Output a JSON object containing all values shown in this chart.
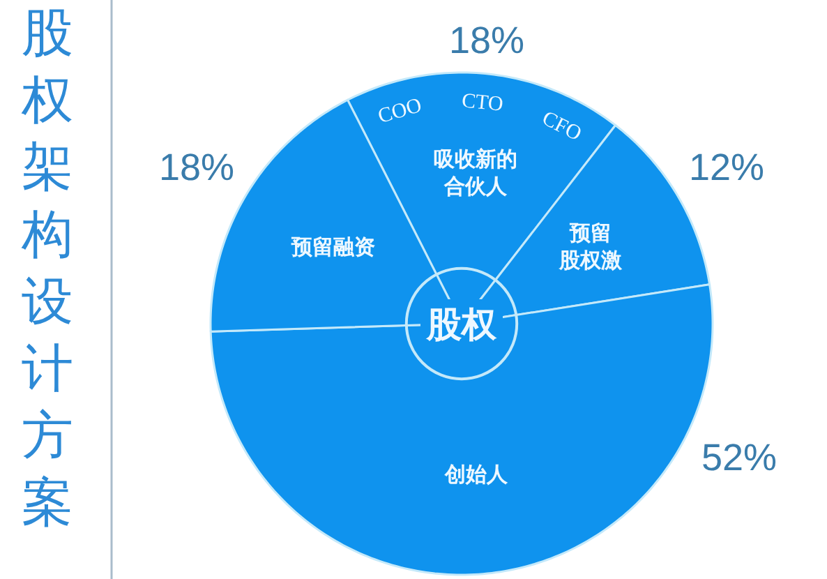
{
  "chart_data": {
    "type": "pie",
    "title": "股权架构设计方案",
    "categories": [
      "吸收新的合伙人",
      "预留股权激",
      "创始人",
      "预留融资"
    ],
    "values": [
      18,
      12,
      52,
      18
    ],
    "value_labels": [
      "18%",
      "12%",
      "52%",
      "18%"
    ],
    "colors": [
      "#0f93ee",
      "#0f93ee",
      "#0f93ee",
      "#0f93ee"
    ],
    "annotations": [
      "股权",
      "COO",
      "CTO",
      "CFO"
    ]
  }
}
